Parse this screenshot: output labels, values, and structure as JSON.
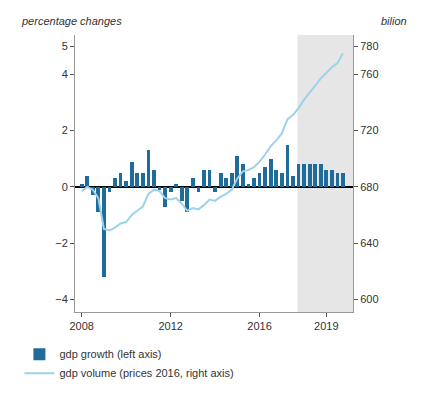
{
  "chart_data": {
    "type": "bar",
    "y_label": "percentage changes",
    "y2_label": "bilion",
    "x": [
      2008,
      2008.25,
      2008.5,
      2008.75,
      2009,
      2009.25,
      2009.5,
      2009.75,
      2010,
      2010.25,
      2010.5,
      2010.75,
      2011,
      2011.25,
      2011.5,
      2011.75,
      2012,
      2012.25,
      2012.5,
      2012.75,
      2013,
      2013.25,
      2013.5,
      2013.75,
      2014,
      2014.25,
      2014.5,
      2014.75,
      2015,
      2015.25,
      2015.5,
      2015.75,
      2016,
      2016.25,
      2016.5,
      2016.75,
      2017,
      2017.25,
      2017.5,
      2017.75,
      2018,
      2018.25,
      2018.5,
      2018.75,
      2019,
      2019.25,
      2019.5,
      2019.75
    ],
    "series": [
      {
        "name": "gdp growth (left axis)",
        "type": "bar",
        "color": "#1f6b9a",
        "values": [
          0.1,
          0.4,
          -0.3,
          -0.9,
          -3.2,
          -0.2,
          0.3,
          0.5,
          0.2,
          0.9,
          0.5,
          0.5,
          1.3,
          0.6,
          -0.1,
          -0.7,
          -0.2,
          0.1,
          -0.5,
          -0.9,
          0.3,
          -0.2,
          0.6,
          0.6,
          -0.2,
          0.5,
          0.3,
          0.5,
          1.1,
          0.8,
          0.1,
          0.3,
          0.5,
          0.7,
          1.0,
          0.6,
          0.5,
          1.5,
          0.4,
          0.8,
          0.8,
          0.8,
          0.8,
          0.8,
          0.6,
          0.6,
          0.5,
          0.5
        ]
      },
      {
        "name": "gdp volume (prices 2016, right axis)",
        "type": "line",
        "axis": "y2",
        "color": "#9dd3ea",
        "line_style": "solid",
        "values": [
          677,
          680,
          678,
          672,
          650,
          649,
          651,
          654,
          655,
          660,
          663,
          666,
          675,
          678,
          677,
          672,
          671,
          672,
          668,
          663,
          665,
          664,
          667,
          671,
          670,
          673,
          675,
          678,
          686,
          691,
          692,
          694,
          698,
          703,
          709,
          713,
          718,
          728,
          731,
          736,
          742,
          747,
          752,
          757,
          761,
          765,
          768,
          775
        ]
      }
    ],
    "shade_from": 2017.7,
    "xlim": [
      2007.7,
      2020.2
    ],
    "xticks": [
      2008,
      2012,
      2016,
      2019
    ],
    "ylim": [
      -4.45,
      5.4
    ],
    "yticks": [
      {
        "value": -4,
        "label": "−4"
      },
      {
        "value": -2,
        "label": "−2"
      },
      0,
      2,
      4,
      5
    ],
    "y2lim": [
      591,
      788
    ],
    "y2ticks": [
      600,
      640,
      680,
      720,
      760,
      780
    ],
    "grid": false,
    "legend": "bottom left"
  }
}
